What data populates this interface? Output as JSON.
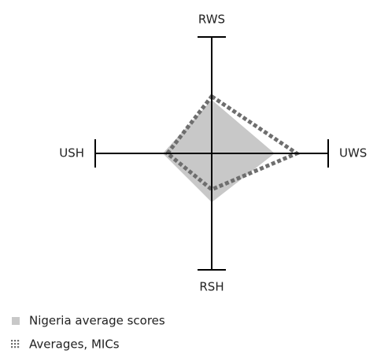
{
  "chart_data": {
    "type": "radar",
    "axes": [
      "RWS",
      "UWS",
      "RSH",
      "USH"
    ],
    "rlim": [
      0,
      1
    ],
    "series": [
      {
        "name": "Nigeria average scores",
        "color": "#c8c8c8",
        "values": [
          0.46,
          0.54,
          0.42,
          0.42
        ]
      },
      {
        "name": "Averages, MICs",
        "color": "#6e6e6e",
        "values": [
          0.49,
          0.73,
          0.31,
          0.38
        ]
      }
    ]
  }
}
